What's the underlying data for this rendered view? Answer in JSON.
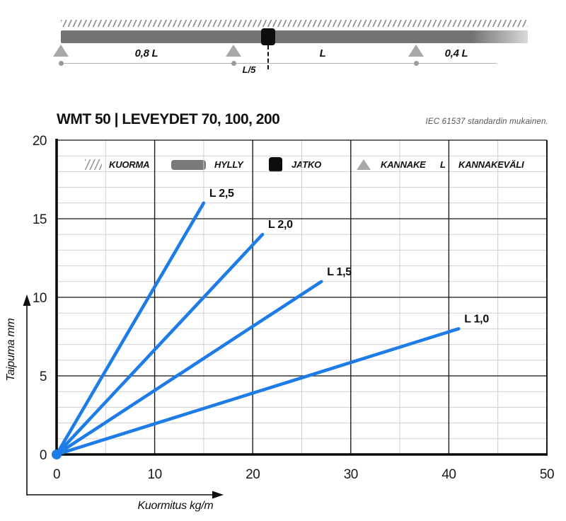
{
  "diagram": {
    "span_labels": [
      "0,8 L",
      "L",
      "0,4 L"
    ],
    "joint_offset_label": "L/5"
  },
  "legend": {
    "items": [
      {
        "icon": "load-hatch-icon",
        "label": "KUORMA"
      },
      {
        "icon": "shelf-icon",
        "label": "HYLLY"
      },
      {
        "icon": "joint-icon",
        "label": "JATKO"
      },
      {
        "icon": "support-icon",
        "label": "KANNAKE"
      },
      {
        "icon": "letter-l-symbol",
        "symbol": "L",
        "label": "KANNAKEVÄLI"
      }
    ]
  },
  "header": {
    "title": "WMT 50 | LEVEYDET 70, 100, 200",
    "note": "IEC 61537 standardin mukainen."
  },
  "colors": {
    "line_blue": "#1e7ce6",
    "shelf_gray": "#737373",
    "support_gray": "#a8a8a8",
    "joint_black": "#0d0d0d",
    "minor_grid": "#cfcfcf",
    "major_grid": "#2a2a2a"
  },
  "chart_data": {
    "type": "line",
    "title": "",
    "xlabel": "Kuormitus kg/m",
    "ylabel": "Taipuma mm",
    "xlim": [
      0,
      50
    ],
    "ylim": [
      0,
      20
    ],
    "x_major_ticks": [
      0,
      10,
      20,
      30,
      40,
      50
    ],
    "y_major_ticks": [
      0,
      5,
      10,
      15,
      20
    ],
    "x_minor_step": 5,
    "y_minor_step": 1,
    "grid": true,
    "legend_position": "inline-labels",
    "line_color": "#1e7ce6",
    "series": [
      {
        "name": "L 2,5",
        "x": [
          0,
          15
        ],
        "y": [
          0,
          16
        ]
      },
      {
        "name": "L 2,0",
        "x": [
          0,
          21
        ],
        "y": [
          0,
          14
        ]
      },
      {
        "name": "L 1,5",
        "x": [
          0,
          27
        ],
        "y": [
          0,
          11
        ]
      },
      {
        "name": "L 1,0",
        "x": [
          0,
          41
        ],
        "y": [
          0,
          8
        ]
      }
    ]
  }
}
